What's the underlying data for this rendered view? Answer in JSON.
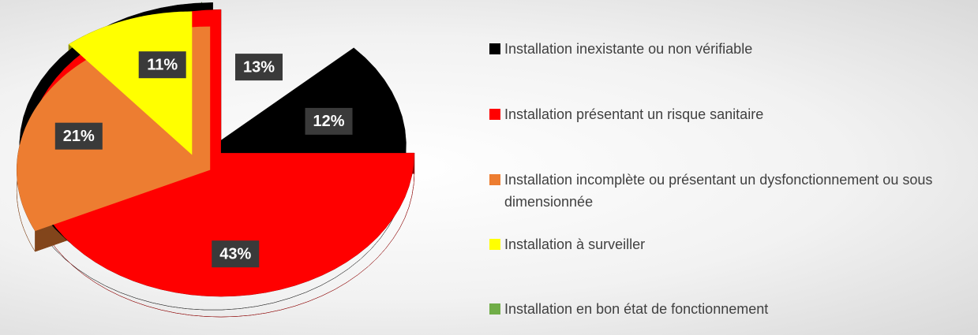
{
  "chart_data": {
    "type": "pie",
    "categories": [
      "Installation inexistante ou non vérifiable",
      "Installation présentant un risque sanitaire",
      "Installation incomplète ou présentant un dysfonctionnement ou sous dimensionnée",
      "Installation à surveiller",
      "Installation en bon état de fonctionnement"
    ],
    "values": [
      13,
      12,
      43,
      21,
      11
    ],
    "value_labels": [
      "13%",
      "12%",
      "43%",
      "21%",
      "11%"
    ],
    "colors": [
      "#000000",
      "#ff0000",
      "#ed7d31",
      "#ffff00",
      "#70ad47"
    ],
    "legend": "right"
  }
}
